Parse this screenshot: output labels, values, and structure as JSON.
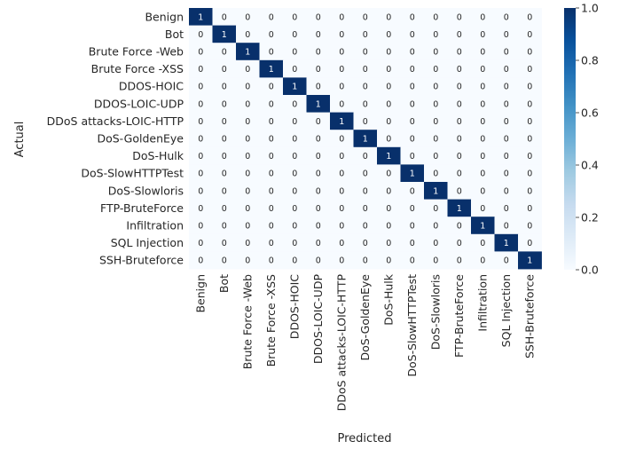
{
  "chart_data": {
    "type": "heatmap",
    "title": "",
    "xlabel": "Predicted",
    "ylabel": "Actual",
    "categories": [
      "Benign",
      "Bot",
      "Brute Force -Web",
      "Brute Force -XSS",
      "DDOS-HOIC",
      "DDOS-LOIC-UDP",
      "DDoS attacks-LOIC-HTTP",
      "DoS-GoldenEye",
      "DoS-Hulk",
      "DoS-SlowHTTPTest",
      "DoS-Slowloris",
      "FTP-BruteForce",
      "Infiltration",
      "SQL Injection",
      "SSH-Bruteforce"
    ],
    "matrix": [
      [
        1,
        0,
        0,
        0,
        0,
        0,
        0,
        0,
        0,
        0,
        0,
        0,
        0,
        0,
        0
      ],
      [
        0,
        1,
        0,
        0,
        0,
        0,
        0,
        0,
        0,
        0,
        0,
        0,
        0,
        0,
        0
      ],
      [
        0,
        0,
        1,
        0,
        0,
        0,
        0,
        0,
        0,
        0,
        0,
        0,
        0,
        0,
        0
      ],
      [
        0,
        0,
        0,
        1,
        0,
        0,
        0,
        0,
        0,
        0,
        0,
        0,
        0,
        0,
        0
      ],
      [
        0,
        0,
        0,
        0,
        1,
        0,
        0,
        0,
        0,
        0,
        0,
        0,
        0,
        0,
        0
      ],
      [
        0,
        0,
        0,
        0,
        0,
        1,
        0,
        0,
        0,
        0,
        0,
        0,
        0,
        0,
        0
      ],
      [
        0,
        0,
        0,
        0,
        0,
        0,
        1,
        0,
        0,
        0,
        0,
        0,
        0,
        0,
        0
      ],
      [
        0,
        0,
        0,
        0,
        0,
        0,
        0,
        1,
        0,
        0,
        0,
        0,
        0,
        0,
        0
      ],
      [
        0,
        0,
        0,
        0,
        0,
        0,
        0,
        0,
        1,
        0,
        0,
        0,
        0,
        0,
        0
      ],
      [
        0,
        0,
        0,
        0,
        0,
        0,
        0,
        0,
        0,
        1,
        0,
        0,
        0,
        0,
        0
      ],
      [
        0,
        0,
        0,
        0,
        0,
        0,
        0,
        0,
        0,
        0,
        1,
        0,
        0,
        0,
        0
      ],
      [
        0,
        0,
        0,
        0,
        0,
        0,
        0,
        0,
        0,
        0,
        0,
        1,
        0,
        0,
        0
      ],
      [
        0,
        0,
        0,
        0,
        0,
        0,
        0,
        0,
        0,
        0,
        0,
        0,
        1,
        0,
        0
      ],
      [
        0,
        0,
        0,
        0,
        0,
        0,
        0,
        0,
        0,
        0,
        0,
        0,
        0,
        1,
        0
      ],
      [
        0,
        0,
        0,
        0,
        0,
        0,
        0,
        0,
        0,
        0,
        0,
        0,
        0,
        0,
        1
      ]
    ],
    "colorbar": {
      "range": [
        0,
        1
      ],
      "ticks": [
        "0.0",
        "0.2",
        "0.4",
        "0.6",
        "0.8",
        "1.0"
      ],
      "colormap": "Blues"
    },
    "colors": {
      "low": "#f7fbff",
      "high": "#08306b",
      "annotation_dark": "#262626",
      "annotation_light": "#ffffff"
    }
  }
}
